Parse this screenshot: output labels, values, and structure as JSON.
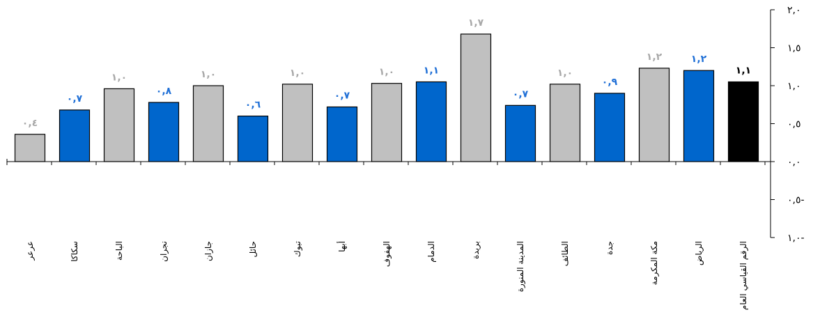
{
  "chart_data": {
    "type": "bar",
    "orientation": "vertical",
    "y_axis_side": "right",
    "grid": false,
    "legend": "none",
    "ylim": [
      -1.0,
      2.0
    ],
    "yticks": [
      -1.0,
      -0.5,
      0.0,
      0.5,
      1.0,
      1.5,
      2.0
    ],
    "ytick_labels": [
      "١,٠-",
      "٠,٥-",
      "٠,٠",
      "٠,٥",
      "١,٠",
      "١,٥",
      "٢,٠"
    ],
    "categories": [
      "عرعر",
      "سكاكا",
      "الباحة",
      "نجران",
      "جازان",
      "حائل",
      "تبوك",
      "أبها",
      "الهفوف",
      "الدمام",
      "بريدة",
      "المدينة المنورة",
      "الطائف",
      "جدة",
      "مكة المكرمة",
      "الرياض",
      "الرقم القياسي العام"
    ],
    "values": [
      0.36,
      0.68,
      0.96,
      0.78,
      1.0,
      0.6,
      1.02,
      0.72,
      1.03,
      1.05,
      1.68,
      0.74,
      1.02,
      0.9,
      1.23,
      1.2,
      1.05
    ],
    "data_labels": [
      "٠,٤",
      "٠,٧",
      "١,٠",
      "٠,٨",
      "١,٠",
      "٠,٦",
      "١,٠",
      "٠,٧",
      "١,٠",
      "١,١",
      "١,٧",
      "٠,٧",
      "١,٠",
      "٠,٩",
      "١,٢",
      "١,٢",
      "١,١"
    ],
    "bar_colors": [
      "#c0c0c0",
      "#0066cc",
      "#c0c0c0",
      "#0066cc",
      "#c0c0c0",
      "#0066cc",
      "#c0c0c0",
      "#0066cc",
      "#c0c0c0",
      "#0066cc",
      "#c0c0c0",
      "#0066cc",
      "#c0c0c0",
      "#0066cc",
      "#c0c0c0",
      "#0066cc",
      "#000000"
    ],
    "label_colors": [
      "#a8a8a8",
      "#1f6fd6",
      "#a8a8a8",
      "#1f6fd6",
      "#a8a8a8",
      "#1f6fd6",
      "#a8a8a8",
      "#1f6fd6",
      "#a8a8a8",
      "#1f6fd6",
      "#a8a8a8",
      "#1f6fd6",
      "#a8a8a8",
      "#1f6fd6",
      "#a8a8a8",
      "#1f6fd6",
      "#000000"
    ]
  }
}
